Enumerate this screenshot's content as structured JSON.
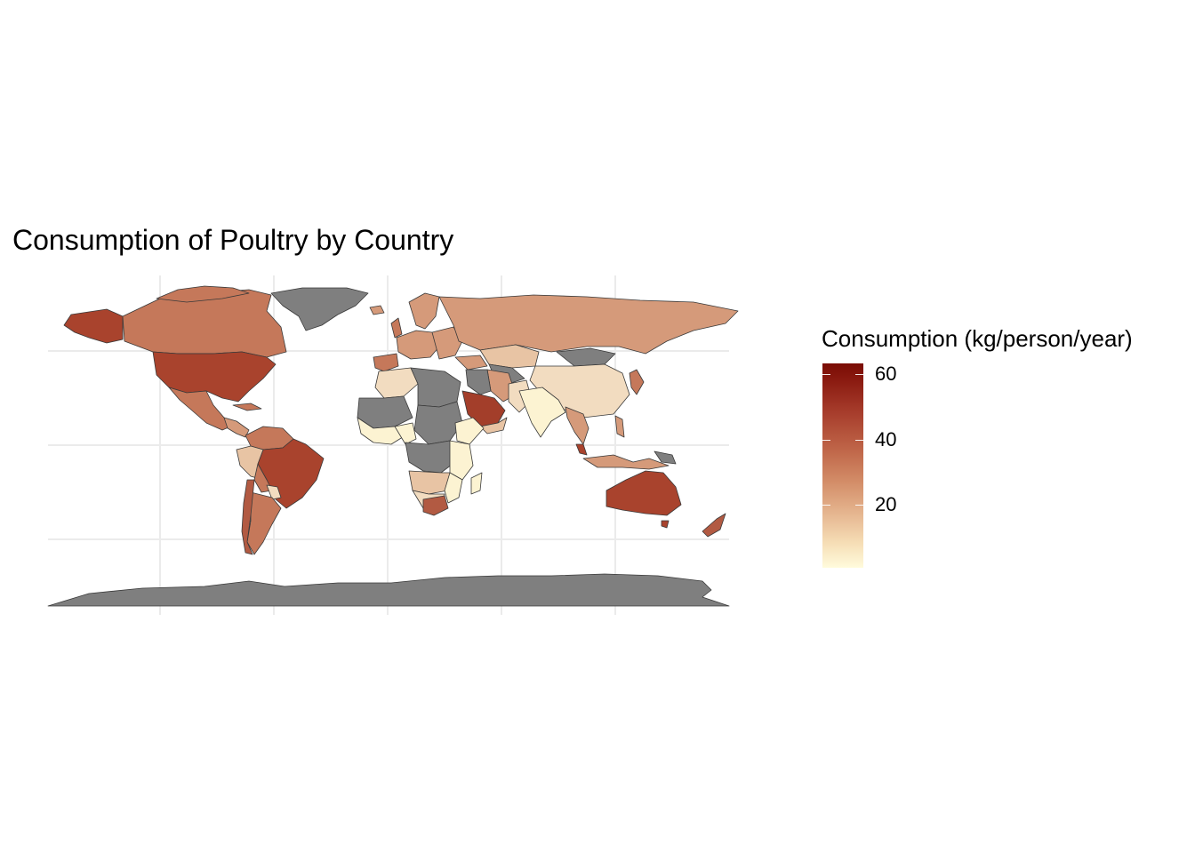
{
  "title": "Consumption of Poultry by Country",
  "legend": {
    "title": "Consumption (kg/person/year)",
    "min": 0,
    "max": 62,
    "ticks": [
      {
        "value": 60,
        "label": "60"
      },
      {
        "value": 40,
        "label": "40"
      },
      {
        "value": 20,
        "label": "20"
      }
    ],
    "low_color": "#fffbdc",
    "high_color": "#7a0c04",
    "na_color": "#7f7f7f"
  },
  "colors": {
    "grid": "#ebebeb",
    "border": "#3a3a3a",
    "na": "#7f7f7f",
    "very_high": "#a33e2a",
    "high": "#b25a42",
    "mid_high": "#c5785a",
    "mid": "#d59a7a",
    "low_mid": "#e8c4a4",
    "low": "#f2dcc0",
    "very_low": "#fcf3d2"
  }
}
